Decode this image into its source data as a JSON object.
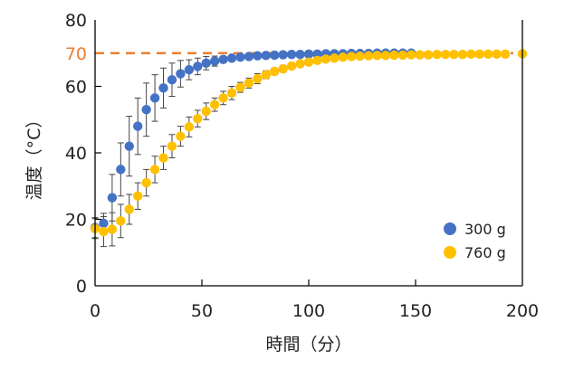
{
  "chart_data": {
    "type": "scatter",
    "title": "",
    "xlabel": "時間（分）",
    "ylabel": "温度（°C）",
    "xlim": [
      0,
      200
    ],
    "ylim": [
      0,
      80
    ],
    "xticks": [
      "0",
      "50",
      "100",
      "150",
      "200"
    ],
    "yticks": [
      "0",
      "20",
      "40",
      "60",
      "80"
    ],
    "reference_line": {
      "value": 70,
      "label": "70",
      "color": "#ED7D31",
      "style": "dashed"
    },
    "legend_position": "bottom-right",
    "series": [
      {
        "name": "300 g",
        "color": "#4472C4",
        "x": [
          0,
          4,
          8,
          12,
          16,
          20,
          24,
          28,
          32,
          36,
          40,
          44,
          48,
          52,
          56,
          60,
          64,
          68,
          72,
          76,
          80,
          84,
          88,
          92,
          96,
          100,
          104,
          108,
          112,
          116,
          120,
          124,
          128,
          132,
          136,
          140,
          144,
          148
        ],
        "y": [
          17.5,
          18.8,
          26.5,
          35,
          42,
          48,
          53,
          56.5,
          59.5,
          62,
          63.8,
          65,
          66,
          67,
          67.6,
          68.1,
          68.5,
          68.8,
          69,
          69.2,
          69.3,
          69.4,
          69.5,
          69.6,
          69.6,
          69.7,
          69.7,
          69.8,
          69.8,
          69.8,
          69.9,
          69.9,
          69.9,
          70,
          70,
          70,
          70,
          70
        ],
        "err": [
          3,
          3,
          7,
          8,
          9,
          8.5,
          8,
          7,
          6,
          5,
          4,
          3,
          2.5,
          2,
          1.5,
          1,
          0.8,
          0.6,
          0.5,
          0.5,
          0.5,
          0.5,
          0.5,
          0.5,
          0.5,
          0.5,
          0.5,
          0.5,
          0.5,
          0.5,
          0.5,
          0.5,
          0.5,
          0.5,
          0.5,
          0.5,
          0.5,
          0.5
        ]
      },
      {
        "name": "760 g",
        "color": "#FFC000",
        "x": [
          0,
          4,
          8,
          12,
          16,
          20,
          24,
          28,
          32,
          36,
          40,
          44,
          48,
          52,
          56,
          60,
          64,
          68,
          72,
          76,
          80,
          84,
          88,
          92,
          96,
          100,
          104,
          108,
          112,
          116,
          120,
          124,
          128,
          132,
          136,
          140,
          144,
          148,
          152,
          156,
          160,
          164,
          168,
          172,
          176,
          180,
          184,
          188,
          192,
          200
        ],
        "y": [
          17.2,
          16.3,
          17,
          19.5,
          23,
          27,
          31,
          35,
          38.5,
          42,
          45,
          47.8,
          50.3,
          52.5,
          54.5,
          56.5,
          58,
          59.7,
          61,
          62.3,
          63.5,
          64.5,
          65.3,
          66.1,
          66.8,
          67.3,
          67.8,
          68.2,
          68.5,
          68.8,
          69,
          69.1,
          69.2,
          69.3,
          69.3,
          69.4,
          69.4,
          69.5,
          69.5,
          69.5,
          69.6,
          69.6,
          69.6,
          69.6,
          69.7,
          69.7,
          69.7,
          69.7,
          69.7,
          69.8
        ],
        "err": [
          3,
          4.5,
          5,
          5,
          4.5,
          4,
          4,
          4,
          3.5,
          3.5,
          3,
          3,
          2.5,
          2.5,
          2,
          2,
          2,
          1.5,
          1.5,
          1.5,
          1.2,
          1,
          1,
          0.8,
          0.8,
          0.6,
          0.6,
          0.5,
          0.5,
          0.5,
          0.5,
          0.5,
          0.5,
          0.5,
          0.5,
          0.5,
          0.5,
          0.5,
          0.5,
          0.5,
          0.5,
          0.5,
          0.5,
          0.5,
          0.5,
          0.5,
          0.5,
          0.5,
          0.5,
          0.5
        ]
      }
    ]
  }
}
